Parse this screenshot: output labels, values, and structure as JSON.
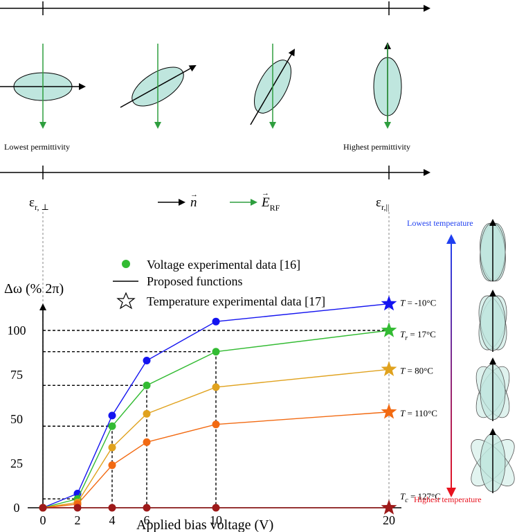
{
  "colors": {
    "ellipse_fill": "#bfe6de",
    "director_arrow": "#000000",
    "rf_field_arrow": "#2e9e3e",
    "lowest_temp_text": "#1f3ff0",
    "highest_temp_text": "#e8121e",
    "series_m10": "#1414f0",
    "series_17": "#33bb33",
    "series_80": "#e0a21e",
    "series_110": "#f26a12",
    "series_127": "#9e1a1a"
  },
  "top_panel": {
    "lowest_label": "Lowest permittivity",
    "highest_label": "Highest permittivity",
    "eps_perp": "ε",
    "eps_perp_sub": "r, ⊥",
    "eps_par": "ε",
    "eps_par_sub": "r,||",
    "n_symbol": "n",
    "e_symbol": "E",
    "e_sub": "RF",
    "ellipse_tilts_deg": [
      0,
      30,
      60,
      90
    ]
  },
  "side_panel": {
    "lowest_temperature": "Lowest temperature",
    "highest_temperature": "Highest temperature"
  },
  "chart_data": {
    "type": "line",
    "ylabel": "Δω (% 2π)",
    "xlabel": "Applied bias voltage (V)",
    "xticks": [
      "0",
      "2",
      "4",
      "6",
      "10",
      "20"
    ],
    "yticks": [
      "0",
      "25",
      "50",
      "75",
      "100"
    ],
    "xlim": [
      0,
      20
    ],
    "ylim": [
      0,
      100
    ],
    "x": [
      0,
      2,
      4,
      6,
      10
    ],
    "star_x": 20,
    "legend": {
      "voltage": "Voltage experimental data [16]",
      "proposed": "Proposed functions",
      "temperature": "Temperature experimental data [17]"
    },
    "series": [
      {
        "label_pre": "T",
        "label_sub": "",
        "label_post": " = -10°C",
        "color": "#1414f0",
        "values": [
          0,
          8,
          52,
          83,
          105
        ],
        "star": 115
      },
      {
        "label_pre": "T",
        "label_sub": "r",
        "label_post": " = 17°C",
        "color": "#33bb33",
        "values": [
          0,
          5,
          46,
          69,
          88
        ],
        "star": 100
      },
      {
        "label_pre": "T",
        "label_sub": "",
        "label_post": " = 80°C",
        "color": "#e0a21e",
        "values": [
          0,
          3,
          34,
          53,
          68
        ],
        "star": 78
      },
      {
        "label_pre": "T",
        "label_sub": "",
        "label_post": " = 110°C",
        "color": "#f26a12",
        "values": [
          0,
          2,
          24,
          37,
          47
        ],
        "star": 54
      },
      {
        "label_pre": "T",
        "label_sub": "c",
        "label_post": " = 127°C",
        "color": "#9e1a1a",
        "values": [
          0,
          0,
          0,
          0,
          0
        ],
        "star": 0
      }
    ],
    "guide_values": [
      5,
      46,
      69,
      88,
      100
    ]
  }
}
